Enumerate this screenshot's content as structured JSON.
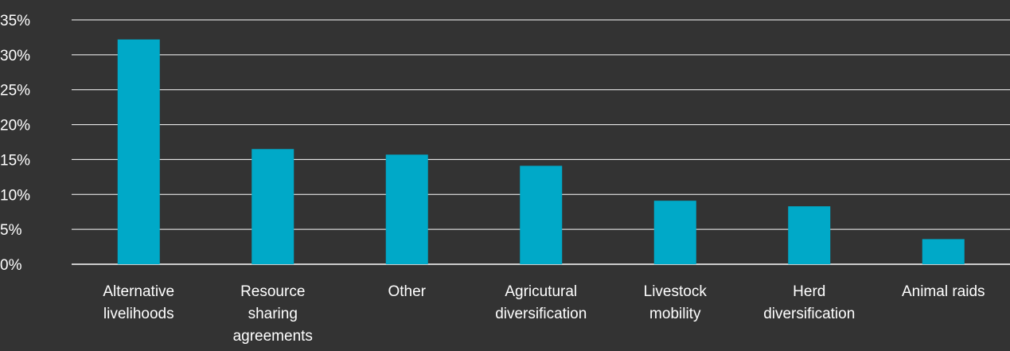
{
  "colors": {
    "background": "#333333",
    "bar": "#00a9c8",
    "grid": "#ffffff",
    "text": "#ffffff"
  },
  "chart_data": {
    "type": "bar",
    "title": "",
    "xlabel": "",
    "ylabel": "",
    "categories": [
      [
        "Alternative",
        "livelihoods"
      ],
      [
        "Resource",
        "sharing",
        "agreements"
      ],
      [
        "Other"
      ],
      [
        "Agricutural",
        "diversification"
      ],
      [
        "Livestock",
        "mobility"
      ],
      [
        "Herd",
        "diversification"
      ],
      [
        "Animal raids"
      ]
    ],
    "values": [
      32.2,
      16.5,
      15.7,
      14.1,
      9.1,
      8.3,
      3.6
    ],
    "ylim": [
      0,
      35
    ],
    "yticks": [
      0,
      5,
      10,
      15,
      20,
      25,
      30,
      35
    ],
    "ytick_labels": [
      "0%",
      "5%",
      "10%",
      "15%",
      "20%",
      "25%",
      "30%",
      "35%"
    ],
    "grid": true,
    "legend": "none"
  }
}
